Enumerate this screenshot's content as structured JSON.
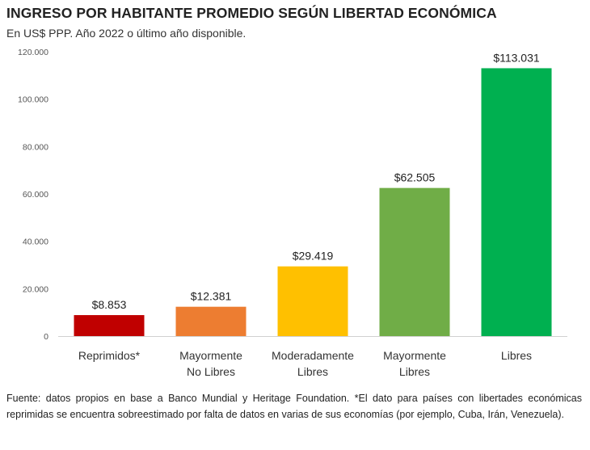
{
  "title": "INGRESO POR HABITANTE PROMEDIO SEGÚN LIBERTAD ECONÓMICA",
  "subtitle": "En US$ PPP. Año 2022 o último año disponible.",
  "footnote": "Fuente: datos propios en base a Banco Mundial y Heritage Foundation. *El dato para países con libertades económicas reprimidas se encuentra sobreestimado por falta de datos en varias de sus economías (por ejemplo, Cuba, Irán, Venezuela).",
  "chart_data": {
    "type": "bar",
    "title": "INGRESO POR HABITANTE PROMEDIO SEGÚN LIBERTAD ECONÓMICA",
    "subtitle": "En US$ PPP. Año 2022 o último año disponible.",
    "xlabel": "",
    "ylabel": "",
    "ylim": [
      0,
      120000
    ],
    "yticks": [
      0,
      20000,
      40000,
      60000,
      80000,
      100000,
      120000
    ],
    "ytick_labels": [
      "0",
      "20.000",
      "40.000",
      "60.000",
      "80.000",
      "100.000",
      "120.000"
    ],
    "grid": false,
    "categories": [
      [
        "Reprimidos*"
      ],
      [
        "Mayormente",
        "No Libres"
      ],
      [
        "Moderadamente",
        "Libres"
      ],
      [
        "Mayormente",
        "Libres"
      ],
      [
        "Libres"
      ]
    ],
    "values": [
      8853,
      12381,
      29419,
      62505,
      113031
    ],
    "data_labels": [
      "$8.853",
      "$12.381",
      "$29.419",
      "$62.505",
      "$113.031"
    ],
    "colors": [
      "#c00000",
      "#ed7d31",
      "#ffc000",
      "#70ad47",
      "#00b050"
    ]
  }
}
